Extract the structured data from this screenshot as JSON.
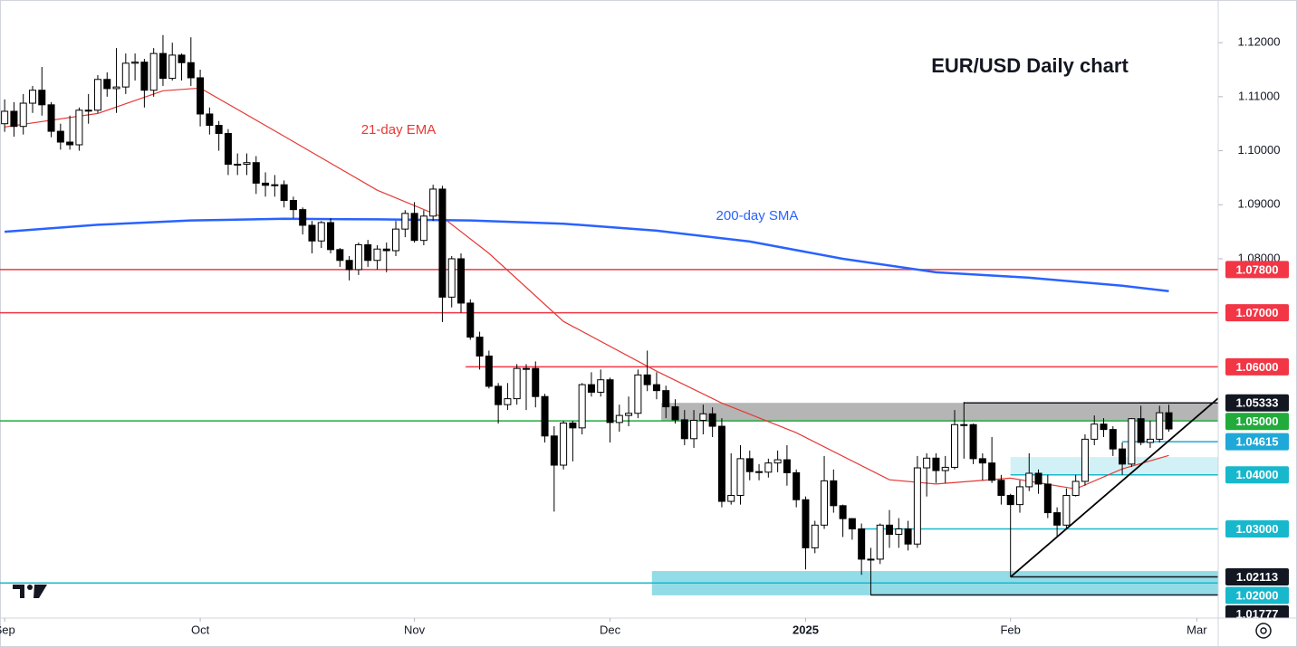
{
  "chart_data": {
    "type": "candlestick",
    "title": "EUR/USD Daily chart",
    "xlim": [
      -0.5,
      130.3
    ],
    "ylim": [
      1.0135,
      1.1279
    ],
    "grid": false,
    "up_color": "#ffffff",
    "down_color": "#000000",
    "xticks": [
      {
        "value": 0,
        "label": "Sep"
      },
      {
        "value": 21,
        "label": "Oct"
      },
      {
        "value": 44,
        "label": "Nov"
      },
      {
        "value": 65,
        "label": "Dec"
      },
      {
        "value": 86,
        "label": "2025"
      },
      {
        "value": 108,
        "label": "Feb"
      },
      {
        "value": 128,
        "label": "Mar"
      }
    ],
    "yticks": [
      {
        "value": 1.08,
        "label": "1.08000"
      },
      {
        "value": 1.09,
        "label": "1.09000"
      },
      {
        "value": 1.1,
        "label": "1.10000"
      },
      {
        "value": 1.11,
        "label": "1.11000"
      },
      {
        "value": 1.12,
        "label": "1.12000"
      }
    ],
    "open": [
      1.105,
      1.1073,
      1.1045,
      1.1088,
      1.1112,
      1.1085,
      1.1036,
      1.1016,
      1.1011,
      1.1075,
      1.1075,
      1.1132,
      1.1115,
      1.1118,
      1.1162,
      1.1164,
      1.1112,
      1.118,
      1.1134,
      1.1177,
      1.1163,
      1.1135,
      1.1068,
      1.1047,
      1.1032,
      1.0975,
      1.0975,
      1.0978,
      1.094,
      1.0936,
      1.0937,
      1.0908,
      1.0891,
      1.0862,
      1.0833,
      1.0867,
      1.0817,
      1.0797,
      1.078,
      1.0826,
      1.0797,
      1.0818,
      1.0815,
      1.0855,
      1.0884,
      1.0834,
      1.0879,
      1.0929,
      1.0729,
      1.08,
      1.0718,
      1.0655,
      1.062,
      1.0564,
      1.053,
      1.0541,
      1.0597,
      1.0597,
      1.0545,
      1.0472,
      1.0418,
      1.0496,
      1.0487,
      1.0567,
      1.0553,
      1.0576,
      1.0497,
      1.051,
      1.0514,
      1.0585,
      1.0567,
      1.0556,
      1.0526,
      1.0502,
      1.0467,
      1.0501,
      1.0513,
      1.049,
      1.0351,
      1.0362,
      1.043,
      1.0406,
      1.0405,
      1.0422,
      1.0428,
      1.0404,
      1.0354,
      1.0265,
      1.0307,
      1.0389,
      1.0343,
      1.0319,
      1.03,
      1.0244,
      1.0244,
      1.0307,
      1.029,
      1.03,
      1.0272,
      1.0413,
      1.0431,
      1.0408,
      1.0414,
      1.0493,
      1.0493,
      1.043,
      1.0422,
      1.039,
      1.0362,
      1.0345,
      1.0378,
      1.0403,
      1.0383,
      1.033,
      1.0307,
      1.0362,
      1.0388,
      1.0466,
      1.0494,
      1.0484,
      1.0448,
      1.042,
      1.0504,
      1.046,
      1.0466,
      1.0515
    ],
    "high": [
      1.1095,
      1.109,
      1.1105,
      1.112,
      1.1155,
      1.109,
      1.105,
      1.1065,
      1.108,
      1.1105,
      1.114,
      1.1145,
      1.119,
      1.118,
      1.118,
      1.117,
      1.119,
      1.1214,
      1.12,
      1.118,
      1.121,
      1.115,
      1.108,
      1.1055,
      1.104,
      1.0995,
      1.0995,
      1.099,
      1.096,
      1.0955,
      1.0945,
      1.0915,
      1.0895,
      1.087,
      1.087,
      1.0875,
      1.082,
      1.0805,
      1.083,
      1.0835,
      1.0825,
      1.083,
      1.087,
      1.089,
      1.0905,
      1.089,
      1.0937,
      1.0935,
      1.0805,
      1.081,
      1.0725,
      1.0665,
      1.063,
      1.057,
      1.057,
      1.0605,
      1.0605,
      1.061,
      1.055,
      1.049,
      1.05,
      1.05,
      1.057,
      1.059,
      1.0595,
      1.058,
      1.053,
      1.0545,
      1.0595,
      1.063,
      1.059,
      1.0565,
      1.054,
      1.052,
      1.052,
      1.053,
      1.0525,
      1.0505,
      1.044,
      1.0455,
      1.0445,
      1.042,
      1.043,
      1.0445,
      1.0455,
      1.041,
      1.036,
      1.0315,
      1.0435,
      1.041,
      1.0345,
      1.032,
      1.031,
      1.0265,
      1.031,
      1.0335,
      1.032,
      1.0315,
      1.0435,
      1.044,
      1.044,
      1.0435,
      1.052,
      1.0535,
      1.0495,
      1.044,
      1.047,
      1.04,
      1.0365,
      1.039,
      1.044,
      1.041,
      1.04,
      1.034,
      1.0375,
      1.04,
      1.0475,
      1.051,
      1.0505,
      1.049,
      1.046,
      1.0505,
      1.0528,
      1.05,
      1.0528,
      1.053
    ],
    "low": [
      1.1035,
      1.1026,
      1.103,
      1.107,
      1.1065,
      1.1025,
      1.1002,
      1.1002,
      1.1,
      1.105,
      1.107,
      1.11,
      1.107,
      1.1105,
      1.113,
      1.108,
      1.11,
      1.112,
      1.113,
      1.113,
      1.112,
      1.1045,
      1.103,
      1.1,
      1.0955,
      1.0955,
      1.0955,
      1.092,
      1.0915,
      1.0915,
      1.0895,
      1.0875,
      1.0845,
      1.081,
      1.082,
      1.081,
      1.0785,
      1.076,
      1.077,
      1.0785,
      1.078,
      1.0775,
      1.0805,
      1.084,
      1.083,
      1.0825,
      1.087,
      1.0683,
      1.071,
      1.07,
      1.065,
      1.0595,
      1.056,
      1.0495,
      1.052,
      1.053,
      1.052,
      1.0525,
      1.046,
      1.0332,
      1.041,
      1.0425,
      1.0475,
      1.0545,
      1.0545,
      1.046,
      1.048,
      1.049,
      1.0505,
      1.0555,
      1.054,
      1.0505,
      1.0495,
      1.0455,
      1.045,
      1.0475,
      1.047,
      1.034,
      1.0345,
      1.0345,
      1.039,
      1.039,
      1.0395,
      1.0405,
      1.038,
      1.034,
      1.0225,
      1.0255,
      1.03,
      1.033,
      1.0285,
      1.028,
      1.0215,
      1.0177,
      1.0235,
      1.0265,
      1.0265,
      1.026,
      1.0265,
      1.036,
      1.0385,
      1.0385,
      1.041,
      1.043,
      1.042,
      1.039,
      1.0385,
      1.0345,
      1.0211,
      1.033,
      1.037,
      1.0365,
      1.032,
      1.0285,
      1.03,
      1.036,
      1.038,
      1.0455,
      1.047,
      1.0435,
      1.04,
      1.0415,
      1.0455,
      1.045,
      1.046,
      1.048
    ],
    "close": [
      1.1073,
      1.1045,
      1.1088,
      1.1112,
      1.1085,
      1.1036,
      1.1016,
      1.1011,
      1.1075,
      1.1075,
      1.1132,
      1.1115,
      1.1118,
      1.1162,
      1.1164,
      1.1112,
      1.118,
      1.1134,
      1.1177,
      1.1163,
      1.1135,
      1.1068,
      1.1047,
      1.1032,
      1.0975,
      1.0975,
      1.0978,
      1.094,
      1.0936,
      1.0937,
      1.0908,
      1.0891,
      1.0862,
      1.0833,
      1.0867,
      1.0817,
      1.0797,
      1.078,
      1.0826,
      1.0797,
      1.0818,
      1.0815,
      1.0855,
      1.0884,
      1.0834,
      1.0879,
      1.0929,
      1.0729,
      1.08,
      1.0718,
      1.0655,
      1.062,
      1.0564,
      1.053,
      1.0541,
      1.0597,
      1.0597,
      1.0545,
      1.0472,
      1.0418,
      1.0496,
      1.0487,
      1.0567,
      1.0553,
      1.0576,
      1.0497,
      1.051,
      1.0514,
      1.0585,
      1.0567,
      1.0556,
      1.0526,
      1.0502,
      1.0467,
      1.0501,
      1.0513,
      1.049,
      1.0351,
      1.0362,
      1.043,
      1.0406,
      1.0405,
      1.0422,
      1.0428,
      1.0404,
      1.0354,
      1.0265,
      1.0307,
      1.0389,
      1.0343,
      1.0319,
      1.03,
      1.0244,
      1.0244,
      1.0307,
      1.029,
      1.03,
      1.0272,
      1.0413,
      1.0431,
      1.0408,
      1.0414,
      1.0493,
      1.0493,
      1.043,
      1.0422,
      1.039,
      1.0362,
      1.0345,
      1.0378,
      1.0403,
      1.0383,
      1.033,
      1.0307,
      1.0362,
      1.0388,
      1.0466,
      1.0494,
      1.0484,
      1.0448,
      1.042,
      1.0504,
      1.046,
      1.0466,
      1.0515,
      1.0485
    ],
    "overlays": [
      {
        "name": "21-day EMA",
        "color": "#e53935",
        "x": [
          0,
          10,
          17,
          21,
          30,
          40,
          47,
          52,
          60,
          70,
          77,
          85,
          95,
          100,
          108,
          115,
          120,
          125
        ],
        "values": [
          1.1044,
          1.1069,
          1.1111,
          1.1116,
          1.1027,
          1.0927,
          1.0877,
          1.081,
          1.0684,
          1.0592,
          1.0533,
          1.0478,
          1.0391,
          1.0383,
          1.0394,
          1.0374,
          1.0411,
          1.0436
        ]
      },
      {
        "name": "200-day SMA",
        "color": "#2962ff",
        "x": [
          0,
          10,
          20,
          30,
          40,
          50,
          60,
          70,
          80,
          90,
          100,
          110,
          120,
          125
        ],
        "values": [
          1.085,
          1.0863,
          1.0871,
          1.0874,
          1.0873,
          1.0871,
          1.0865,
          1.0852,
          1.0832,
          1.08,
          1.0775,
          1.0765,
          1.075,
          1.074
        ]
      }
    ],
    "zones": [
      {
        "ymin": 1.05,
        "ymax": 1.05333,
        "start": 70.5,
        "color": "#a8a8a8"
      },
      {
        "ymin": 1.04,
        "ymax": 1.0433,
        "start": 108,
        "color": "#c9eff4"
      },
      {
        "ymin": 1.0177,
        "ymax": 1.0222,
        "start": 69.5,
        "color": "#7fd6e3"
      }
    ],
    "levels": [
      {
        "value": 1.078,
        "label": "1.07800",
        "color": "#f23645"
      },
      {
        "value": 1.07,
        "label": "1.07000",
        "color": "#f23645"
      },
      {
        "value": 1.06,
        "label": "1.06000",
        "color": "#f23645",
        "start": 49.5
      },
      {
        "value": 1.05333,
        "label": "1.05333",
        "color": "#131722",
        "start": 103
      },
      {
        "value": 1.05,
        "label": "1.05000",
        "color": "#22ab3b"
      },
      {
        "value": 1.04615,
        "label": "1.04615",
        "color": "#1fa8d8",
        "start": 120
      },
      {
        "value": 1.04,
        "label": "1.04000",
        "color": "#18b8cc",
        "start": 108
      },
      {
        "value": 1.03,
        "label": "1.03000",
        "color": "#18b8cc",
        "start": 92
      },
      {
        "value": 1.02113,
        "label": "1.02113",
        "color": "#131722",
        "start": 108
      },
      {
        "value": 1.02,
        "label": "1.02000",
        "color": "#18b8cc"
      },
      {
        "value": 1.01777,
        "label": "1.01777",
        "color": "#131722",
        "start": 93
      }
    ],
    "trendline": {
      "color": "#000000",
      "x": [
        108,
        130.3
      ],
      "y": [
        1.0211,
        1.0542
      ]
    }
  }
}
